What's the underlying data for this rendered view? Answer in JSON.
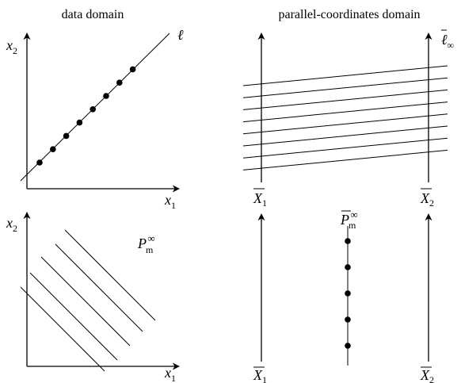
{
  "titles": {
    "left": "data domain",
    "right": "parallel-coordinates domain"
  },
  "axis_labels": {
    "x_base": "x",
    "x_sub_1": "1",
    "x_sub_2": "2",
    "X_base": "X",
    "X_sub_1": "1",
    "X_sub_2": "2"
  },
  "line_label": {
    "ell": "ℓ",
    "ell_bar": "ℓ",
    "ell_bar_sub": "∞"
  },
  "point_label": {
    "P": "P",
    "P_sub": "m",
    "P_sup": "∞"
  }
}
